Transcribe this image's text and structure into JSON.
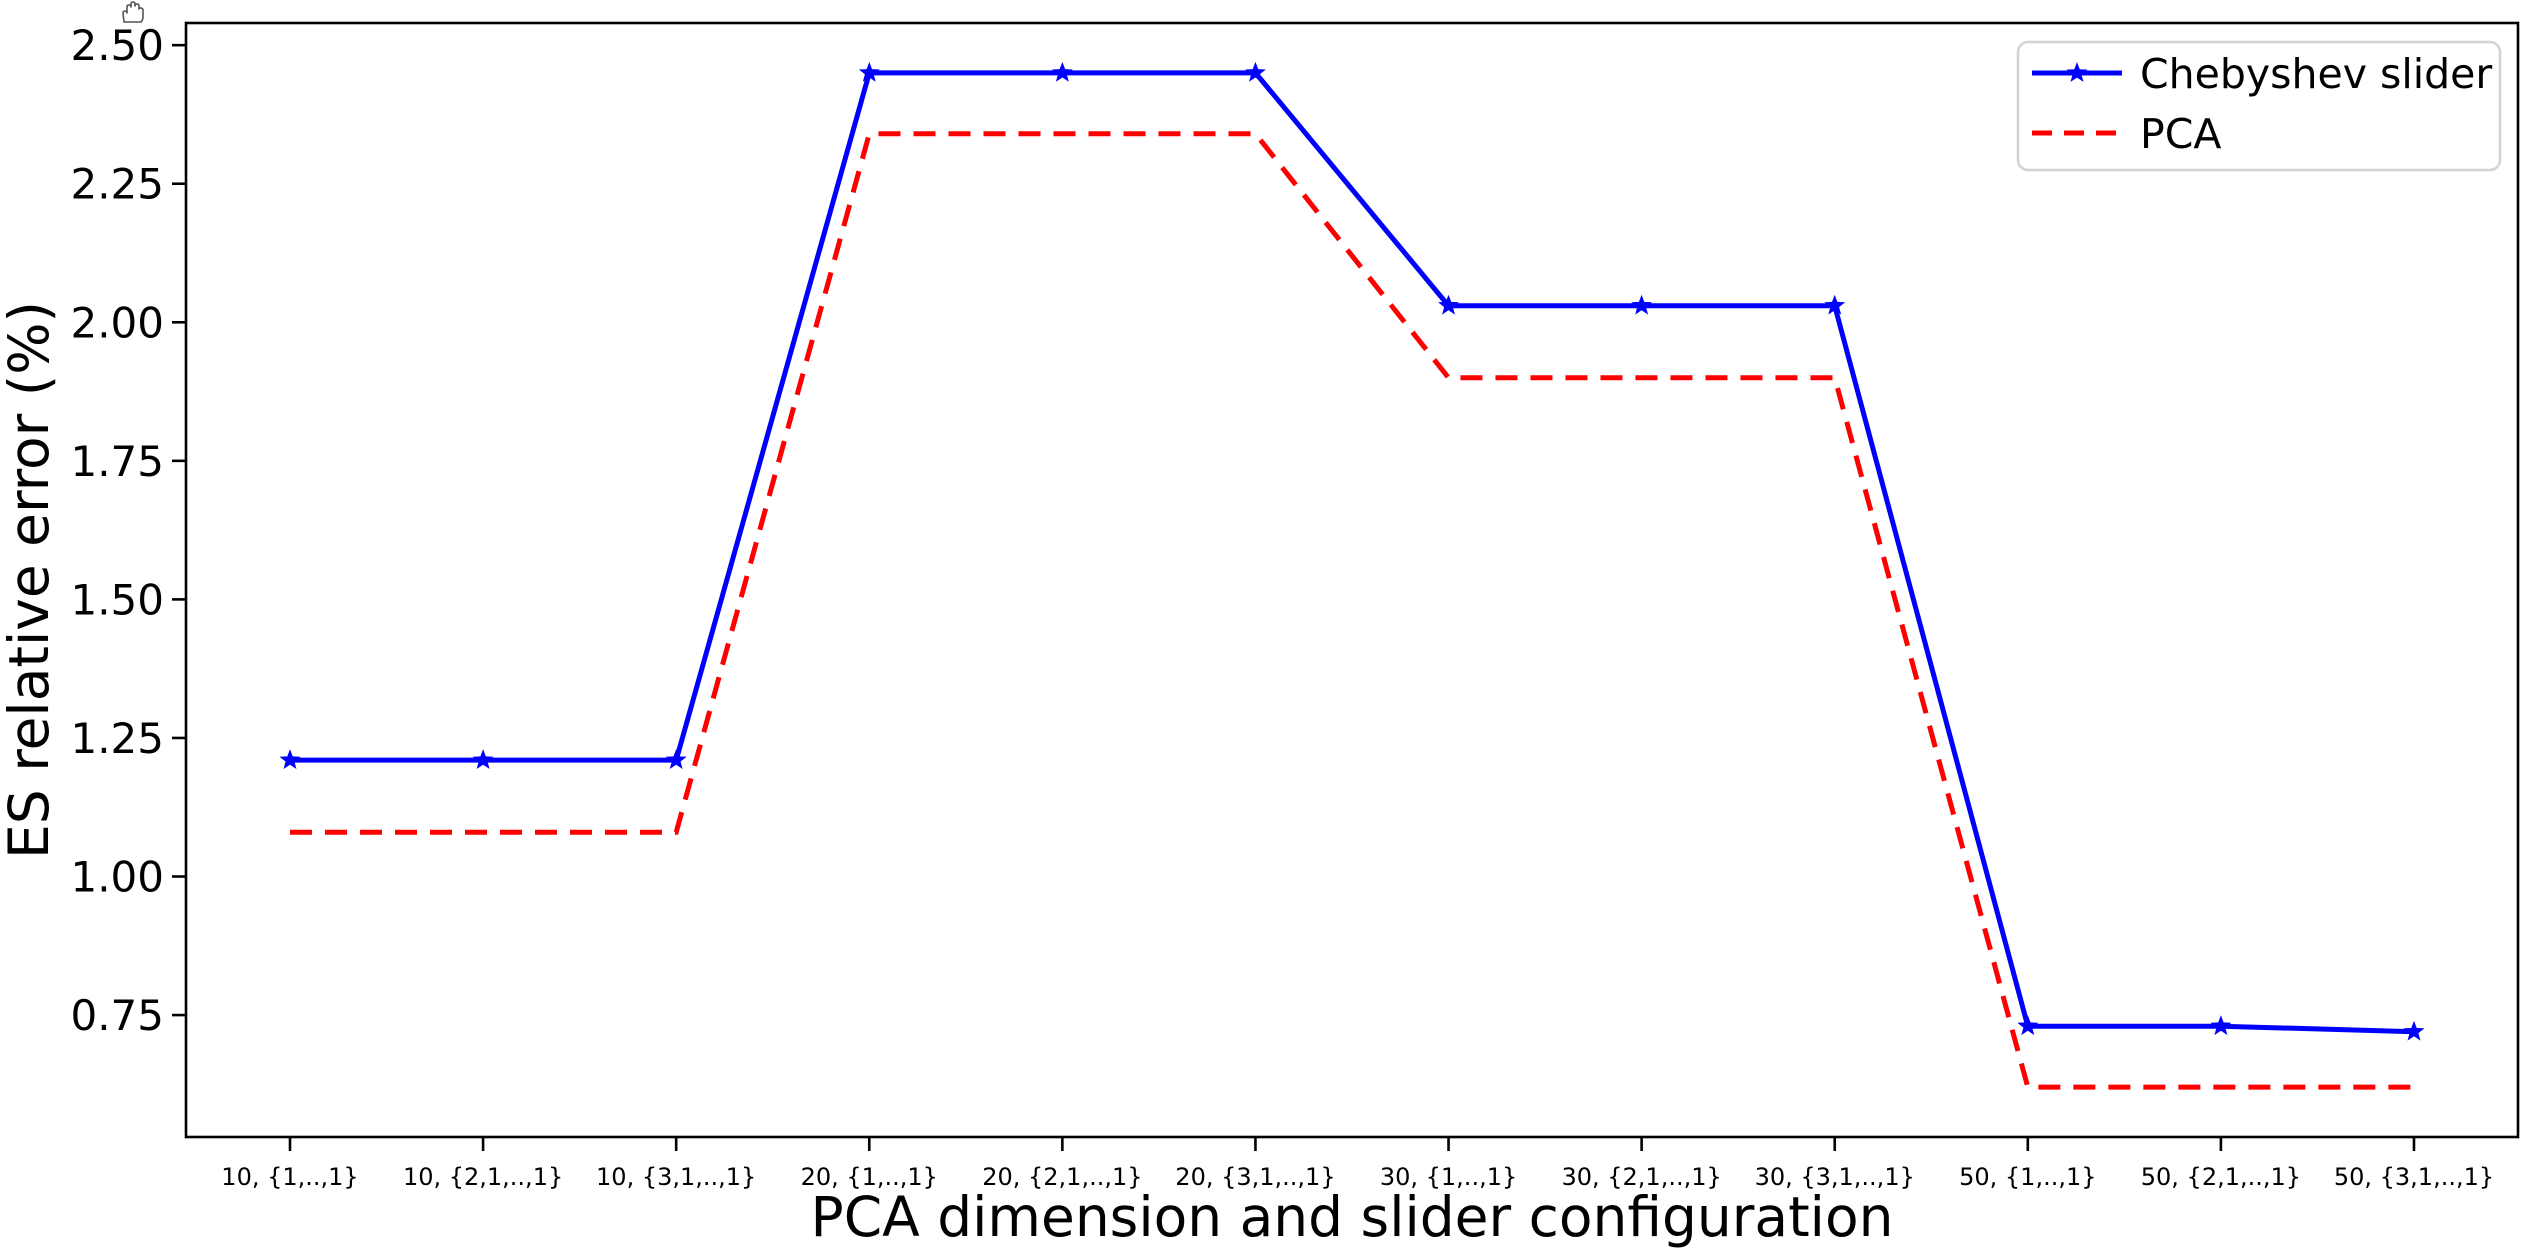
{
  "figure": {
    "background": "#ffffff",
    "cursor_icon": "open-hand-cursor"
  },
  "chart_data": {
    "type": "line",
    "title": "",
    "xlabel": "PCA dimension and slider configuration",
    "ylabel": "ES relative error (%)",
    "categories": [
      "10, {1,..,1}",
      "10, {2,1,..,1}",
      "10, {3,1,..,1}",
      "20, {1,..,1}",
      "20, {2,1,..,1}",
      "20, {3,1,..,1}",
      "30, {1,..,1}",
      "30, {2,1,..,1}",
      "30, {3,1,..,1}",
      "50, {1,..,1}",
      "50, {2,1,..,1}",
      "50, {3,1,..,1}"
    ],
    "series": [
      {
        "name": "Chebyshev slider",
        "color": "#0000ff",
        "style": "solid",
        "marker": "star",
        "values": [
          1.21,
          1.21,
          1.21,
          2.45,
          2.45,
          2.45,
          2.03,
          2.03,
          2.03,
          0.73,
          0.73,
          0.72
        ]
      },
      {
        "name": "PCA",
        "color": "#ff0000",
        "style": "dashed",
        "marker": "none",
        "values": [
          1.08,
          1.08,
          1.08,
          2.34,
          2.34,
          2.34,
          1.9,
          1.9,
          1.9,
          0.62,
          0.62,
          0.62
        ]
      }
    ],
    "ytick_labels": [
      "0.75",
      "1.00",
      "1.25",
      "1.50",
      "1.75",
      "2.00",
      "2.25",
      "2.50"
    ],
    "ylim": [
      0.53,
      2.54
    ],
    "grid": false,
    "legend": {
      "position": "upper right",
      "entries": [
        "Chebyshev slider",
        "PCA"
      ]
    },
    "axis_color": "#000000",
    "legend_border_color": "#d3d3d3"
  }
}
